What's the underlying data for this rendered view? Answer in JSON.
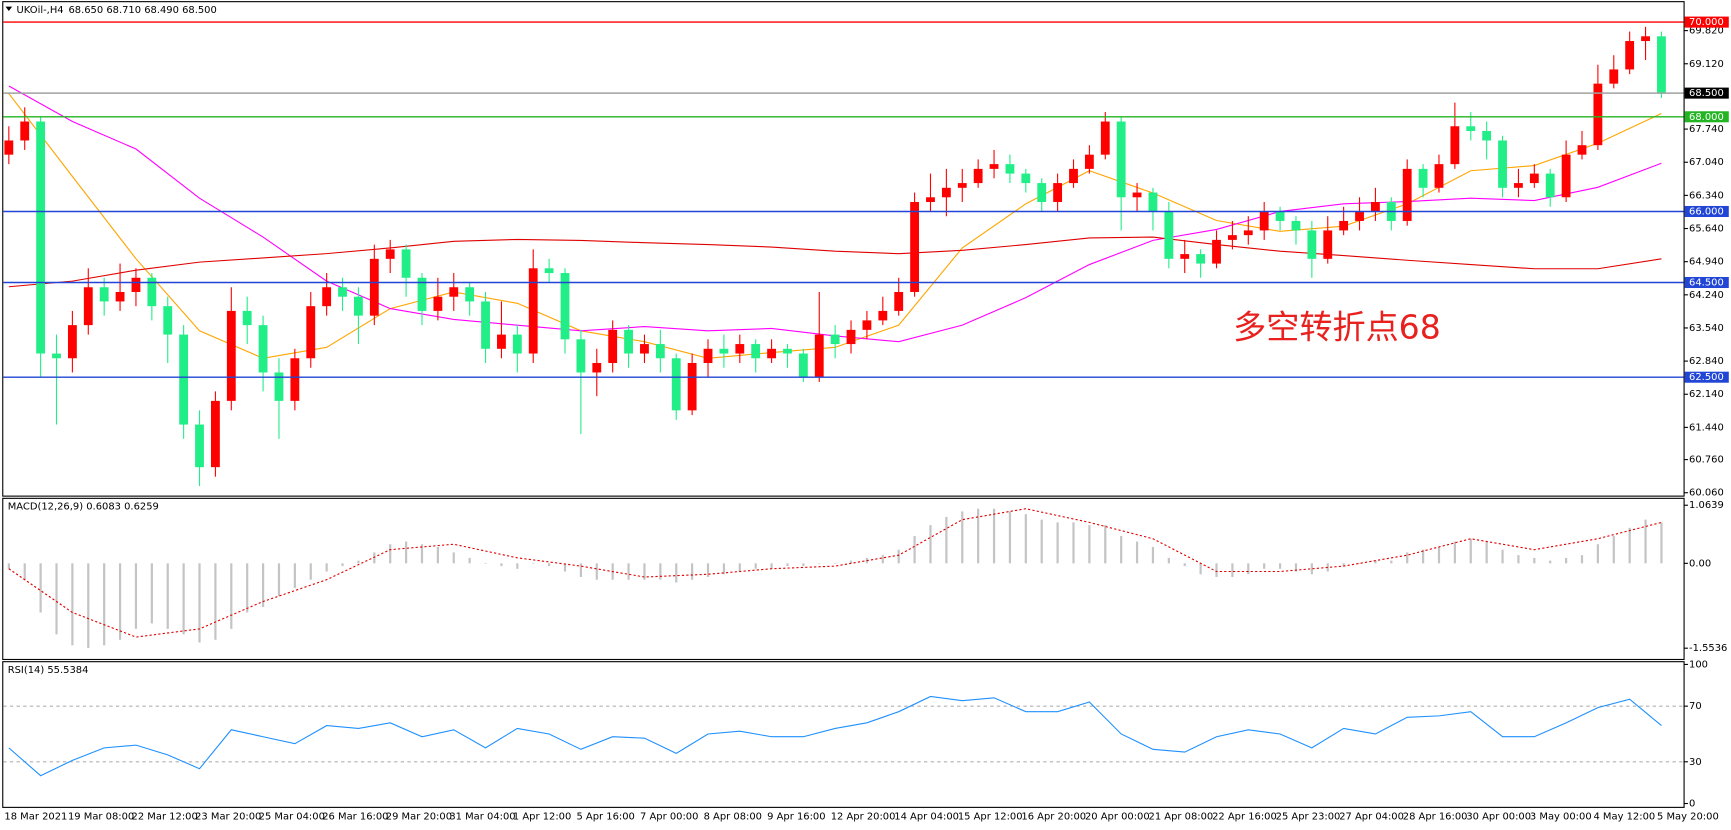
{
  "chart_data": [
    {
      "type": "candlestick",
      "title": "UKOil-,H4",
      "subtitle": "68.650 68.710 68.490 68.500",
      "categories": [
        "18 Mar 2021",
        null,
        null,
        null,
        "19 Mar 08:00",
        null,
        null,
        null,
        "22 Mar 12:00",
        null,
        null,
        null,
        "23 Mar 20:00",
        null,
        null,
        null,
        "25 Mar 04:00",
        null,
        null,
        null,
        "26 Mar 16:00",
        null,
        null,
        null,
        "29 Mar 20:00",
        null,
        null,
        null,
        "31 Mar 04:00",
        null,
        null,
        null,
        "1 Apr 12:00",
        null,
        null,
        null,
        "5 Apr 16:00",
        null,
        null,
        null,
        "7 Apr 00:00",
        null,
        null,
        null,
        "8 Apr 08:00",
        null,
        null,
        null,
        "9 Apr 16:00",
        null,
        null,
        null,
        "12 Apr 20:00",
        null,
        null,
        null,
        "14 Apr 04:00",
        null,
        null,
        null,
        "15 Apr 12:00",
        null,
        null,
        null,
        "16 Apr 20:00",
        null,
        null,
        null,
        "20 Apr 00:00",
        null,
        null,
        null,
        "21 Apr 08:00",
        null,
        null,
        null,
        "22 Apr 16:00",
        null,
        null,
        null,
        "25 Apr 23:00",
        null,
        null,
        null,
        "27 Apr 04:00",
        null,
        null,
        null,
        "28 Apr 16:00",
        null,
        null,
        null,
        "30 Apr 00:00",
        null,
        null,
        null,
        "3 May 00:00",
        null,
        null,
        null,
        "4 May 12:00",
        null,
        null,
        null,
        "5 May 20:00"
      ],
      "open": [
        67.2,
        67.5,
        67.9,
        63.0,
        62.9,
        63.6,
        64.4,
        64.1,
        64.3,
        64.6,
        64.0,
        63.4,
        61.5,
        60.6,
        62.0,
        63.9,
        63.6,
        62.6,
        62.0,
        62.9,
        64.0,
        64.4,
        64.2,
        63.8,
        65.0,
        65.2,
        64.6,
        63.9,
        64.2,
        64.4,
        64.1,
        63.1,
        63.4,
        63.0,
        64.8,
        64.7,
        63.3,
        62.6,
        62.8,
        63.5,
        63.0,
        63.2,
        62.9,
        61.8,
        62.8,
        63.1,
        63.0,
        63.2,
        62.9,
        63.1,
        63.0,
        62.5,
        63.4,
        63.2,
        63.5,
        63.7,
        63.9,
        64.3,
        66.2,
        66.3,
        66.5,
        66.6,
        66.9,
        67.0,
        66.8,
        66.6,
        66.2,
        66.6,
        66.9,
        67.2,
        67.9,
        66.3,
        66.4,
        66.0,
        65.0,
        65.1,
        64.9,
        65.4,
        65.5,
        65.6,
        66.0,
        65.8,
        65.6,
        65.0,
        65.6,
        65.8,
        66.0,
        66.2,
        65.8,
        66.9,
        66.5,
        67.0,
        67.8,
        67.7,
        67.5,
        66.5,
        66.6,
        66.8,
        66.3,
        67.2,
        67.4,
        68.7,
        69.0,
        69.6,
        69.7
      ],
      "high": [
        67.8,
        68.2,
        68.0,
        63.4,
        63.9,
        64.8,
        64.6,
        64.9,
        64.8,
        64.7,
        64.2,
        63.6,
        61.8,
        62.2,
        64.4,
        64.2,
        63.8,
        62.9,
        63.1,
        64.3,
        64.7,
        64.6,
        64.4,
        65.3,
        65.4,
        65.3,
        64.7,
        64.6,
        64.7,
        64.5,
        64.3,
        64.1,
        63.6,
        65.2,
        65.0,
        64.8,
        63.5,
        63.1,
        63.7,
        63.6,
        63.4,
        63.5,
        63.0,
        63.0,
        63.3,
        63.4,
        63.4,
        63.3,
        63.3,
        63.2,
        63.1,
        64.3,
        63.6,
        63.7,
        63.9,
        64.2,
        64.6,
        66.4,
        66.8,
        66.9,
        66.9,
        67.1,
        67.3,
        67.2,
        66.9,
        66.7,
        66.8,
        67.1,
        67.4,
        68.1,
        68.0,
        66.6,
        66.5,
        66.2,
        65.4,
        65.2,
        65.6,
        65.8,
        65.9,
        66.2,
        66.1,
        65.9,
        65.8,
        65.9,
        66.1,
        66.3,
        66.5,
        66.3,
        67.1,
        67.0,
        67.2,
        68.3,
        68.1,
        67.9,
        67.6,
        66.9,
        67.0,
        66.9,
        67.5,
        67.7,
        69.1,
        69.3,
        69.8,
        69.9,
        69.8
      ],
      "low": [
        67.0,
        67.3,
        62.5,
        61.5,
        62.6,
        63.4,
        63.8,
        63.9,
        64.0,
        63.7,
        62.8,
        61.2,
        60.2,
        60.4,
        61.8,
        63.2,
        62.2,
        61.2,
        61.8,
        62.7,
        63.8,
        63.9,
        63.2,
        63.6,
        64.7,
        64.2,
        63.6,
        63.7,
        63.9,
        63.8,
        62.8,
        62.9,
        62.6,
        62.8,
        64.5,
        63.0,
        61.3,
        62.1,
        62.6,
        62.7,
        62.8,
        62.6,
        61.6,
        61.7,
        62.5,
        62.7,
        62.8,
        62.6,
        62.8,
        62.7,
        62.4,
        62.4,
        62.9,
        63.0,
        63.3,
        63.6,
        63.8,
        64.2,
        66.0,
        65.9,
        66.2,
        66.5,
        66.7,
        66.6,
        66.4,
        66.0,
        66.0,
        66.5,
        66.8,
        67.1,
        65.6,
        66.0,
        65.6,
        64.8,
        64.7,
        64.6,
        64.8,
        65.2,
        65.3,
        65.4,
        65.6,
        65.3,
        64.6,
        64.9,
        65.5,
        65.6,
        65.8,
        65.6,
        65.7,
        66.3,
        66.4,
        66.9,
        67.5,
        67.1,
        66.3,
        66.3,
        66.5,
        66.1,
        66.2,
        67.1,
        67.3,
        68.6,
        68.9,
        69.2,
        68.4
      ],
      "close": [
        67.5,
        67.9,
        63.0,
        62.9,
        63.6,
        64.4,
        64.1,
        64.3,
        64.6,
        64.0,
        63.4,
        61.5,
        60.6,
        62.0,
        63.9,
        63.6,
        62.6,
        62.0,
        62.9,
        64.0,
        64.4,
        64.2,
        63.8,
        65.0,
        65.2,
        64.6,
        63.9,
        64.2,
        64.4,
        64.1,
        63.1,
        63.4,
        63.0,
        64.8,
        64.7,
        63.3,
        62.6,
        62.8,
        63.5,
        63.0,
        63.2,
        62.9,
        61.8,
        62.8,
        63.1,
        63.0,
        63.2,
        62.9,
        63.1,
        63.0,
        62.5,
        63.4,
        63.2,
        63.5,
        63.7,
        63.9,
        64.3,
        66.2,
        66.3,
        66.5,
        66.6,
        66.9,
        67.0,
        66.8,
        66.6,
        66.2,
        66.6,
        66.9,
        67.2,
        67.9,
        66.3,
        66.4,
        66.0,
        65.0,
        65.1,
        64.9,
        65.4,
        65.5,
        65.6,
        66.0,
        65.8,
        65.6,
        65.0,
        65.6,
        65.8,
        66.0,
        66.2,
        65.8,
        66.9,
        66.5,
        67.0,
        67.8,
        67.7,
        67.5,
        66.5,
        66.6,
        66.8,
        66.3,
        67.2,
        67.4,
        68.7,
        69.0,
        69.6,
        69.7,
        68.5
      ],
      "up_color": "#ff0000",
      "down_color": "#22ee88",
      "lines": [
        {
          "color": "#ffa500",
          "values": [
            68.49,
            66.74,
            65.0,
            63.48,
            62.9,
            63.13,
            63.95,
            64.3,
            64.06,
            63.48,
            63.25,
            62.9,
            63.02,
            63.13,
            63.6,
            65.23,
            66.16,
            66.86,
            66.39,
            65.81,
            65.58,
            65.69,
            66.16,
            66.86,
            66.97,
            67.44,
            68.07
          ]
        },
        {
          "color": "#ff00ff",
          "values": [
            68.65,
            67.9,
            67.32,
            66.28,
            65.46,
            64.53,
            63.95,
            63.72,
            63.6,
            63.48,
            63.57,
            63.48,
            63.53,
            63.37,
            63.25,
            63.6,
            64.18,
            64.88,
            65.39,
            65.62,
            66.0,
            66.16,
            66.21,
            66.28,
            66.23,
            66.51,
            67.02
          ]
        },
        {
          "color": "#e00000",
          "values": [
            64.41,
            64.53,
            64.76,
            64.93,
            65.02,
            65.11,
            65.23,
            65.37,
            65.41,
            65.39,
            65.34,
            65.3,
            65.25,
            65.16,
            65.11,
            65.18,
            65.3,
            65.44,
            65.46,
            65.3,
            65.16,
            65.07,
            64.97,
            64.88,
            64.79,
            64.79,
            65.0
          ]
        }
      ],
      "levels": [
        {
          "value": 70,
          "label": "70.000",
          "color": "#ff0000",
          "label_background": "#ff0000"
        },
        {
          "value": 68.5,
          "label": "68.500",
          "color": "#a0a0a0",
          "label_background": "#000000"
        },
        {
          "value": 68,
          "label": "68.000",
          "color": "#22b422",
          "label_background": "#22b422"
        },
        {
          "value": 66,
          "label": "66.000",
          "color": "#2146d6",
          "label_background": "#2146d6"
        },
        {
          "value": 64.5,
          "label": "64.500",
          "color": "#2146d6",
          "label_background": "#2146d6"
        },
        {
          "value": 62.5,
          "label": "62.500",
          "color": "#2146d6",
          "label_background": "#2146d6"
        }
      ],
      "annotation": "多空转折点68",
      "annotation_color": "#e8201e",
      "ylim": [
        60.0,
        70.42
      ],
      "yticks": [
        {
          "value": 69.82,
          "label": "69.820"
        },
        {
          "value": 69.12,
          "label": "69.120"
        },
        {
          "value": 67.74,
          "label": "67.740"
        },
        {
          "value": 67.04,
          "label": "67.040"
        },
        {
          "value": 66.34,
          "label": "66.340"
        },
        {
          "value": 65.64,
          "label": "65.640"
        },
        {
          "value": 64.94,
          "label": "64.940"
        },
        {
          "value": 64.24,
          "label": "64.240"
        },
        {
          "value": 63.54,
          "label": "63.540"
        },
        {
          "value": 62.84,
          "label": "62.840"
        },
        {
          "value": 62.14,
          "label": "62.140"
        },
        {
          "value": 61.44,
          "label": "61.440"
        },
        {
          "value": 60.76,
          "label": "60.760"
        },
        {
          "value": 60.06,
          "label": "60.060"
        }
      ]
    },
    {
      "type": "macd",
      "title": "MACD(12,26,9) 0.6083 0.6259",
      "histogram": {
        "color": "#c4c4c4",
        "values": [
          -0.1,
          -0.3,
          -0.9,
          -1.3,
          -1.5,
          -1.55,
          -1.5,
          -1.4,
          -1.2,
          -1.1,
          -1.2,
          -1.3,
          -1.45,
          -1.4,
          -1.2,
          -0.9,
          -0.8,
          -0.6,
          -0.45,
          -0.3,
          -0.15,
          -0.05,
          0.05,
          0.2,
          0.35,
          0.4,
          0.35,
          0.3,
          0.2,
          0.1,
          0.0,
          -0.05,
          -0.1,
          0.0,
          -0.05,
          -0.15,
          -0.25,
          -0.3,
          -0.3,
          -0.3,
          -0.3,
          -0.3,
          -0.35,
          -0.3,
          -0.25,
          -0.2,
          -0.15,
          -0.1,
          -0.1,
          -0.05,
          -0.05,
          0.0,
          0.0,
          0.05,
          0.1,
          0.15,
          0.25,
          0.5,
          0.7,
          0.85,
          0.95,
          1.0,
          1.0,
          0.95,
          0.9,
          0.8,
          0.75,
          0.75,
          0.7,
          0.7,
          0.5,
          0.4,
          0.3,
          0.1,
          -0.05,
          -0.2,
          -0.25,
          -0.25,
          -0.2,
          -0.1,
          -0.1,
          -0.15,
          -0.2,
          -0.15,
          -0.05,
          0.0,
          0.05,
          0.05,
          0.2,
          0.25,
          0.3,
          0.4,
          0.45,
          0.4,
          0.25,
          0.15,
          0.1,
          0.05,
          0.1,
          0.15,
          0.35,
          0.5,
          0.65,
          0.8,
          0.75
        ]
      },
      "signal": {
        "color": "#e00000",
        "values": [
          -0.1,
          -0.9,
          -1.35,
          -1.2,
          -0.7,
          -0.3,
          0.25,
          0.35,
          0.1,
          -0.05,
          -0.25,
          -0.2,
          -0.1,
          -0.05,
          0.15,
          0.8,
          1.0,
          0.75,
          0.45,
          -0.15,
          -0.15,
          -0.05,
          0.15,
          0.45,
          0.25,
          0.45,
          0.75
        ]
      },
      "ylim": [
        -1.75,
        1.18
      ],
      "yticks": [
        1.0639,
        {
          "value": 0,
          "label": "0.00"
        },
        -1.5536
      ]
    },
    {
      "type": "rsi",
      "title": "RSI(14) 55.5384",
      "series": [
        {
          "color": "#1e90ff",
          "values": [
            40,
            20,
            31,
            40,
            42,
            35,
            25,
            53,
            48,
            43,
            56,
            54,
            58,
            48,
            53,
            40,
            54,
            50,
            39,
            48,
            47,
            36,
            50,
            52,
            48,
            48,
            54,
            58,
            66,
            77,
            74,
            76,
            66,
            66,
            73,
            50,
            39,
            37,
            48,
            53,
            50,
            40,
            54,
            50,
            62,
            63,
            66,
            48,
            48,
            58,
            69,
            75,
            56
          ]
        }
      ],
      "dashed_levels": [
        70,
        30
      ],
      "ylim": [
        0,
        100
      ],
      "yticks": [
        100,
        70,
        30,
        0
      ]
    }
  ]
}
